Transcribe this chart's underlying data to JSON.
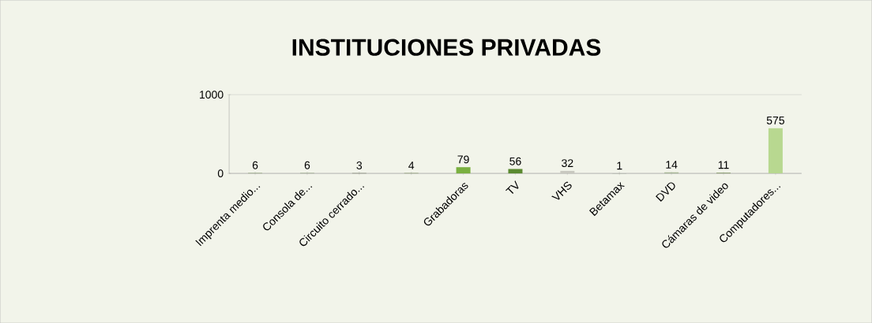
{
  "chart_data": {
    "type": "bar",
    "title": "INSTITUCIONES PRIVADAS",
    "categories": [
      "Imprenta medio...",
      "Consola de...",
      "Circuito cerrado...",
      null,
      "Grabadoras",
      "TV",
      "VHS",
      "Betamax",
      "DVD",
      "Cámaras de video",
      "Computadores..."
    ],
    "values": [
      6,
      6,
      3,
      4,
      79,
      56,
      32,
      1,
      14,
      11,
      575
    ],
    "colors": [
      "#8fa87a",
      "#9aaa88",
      "#3a4a20",
      "#6a8a40",
      "#7ab040",
      "#5a8a30",
      "#c8c8c0",
      "#4a6a30",
      "#a8b898",
      "#98a880",
      "#b8d890"
    ],
    "ylim": [
      0,
      1000
    ],
    "yticks": [
      0,
      1000
    ],
    "grid": "y",
    "data_labels": true
  }
}
